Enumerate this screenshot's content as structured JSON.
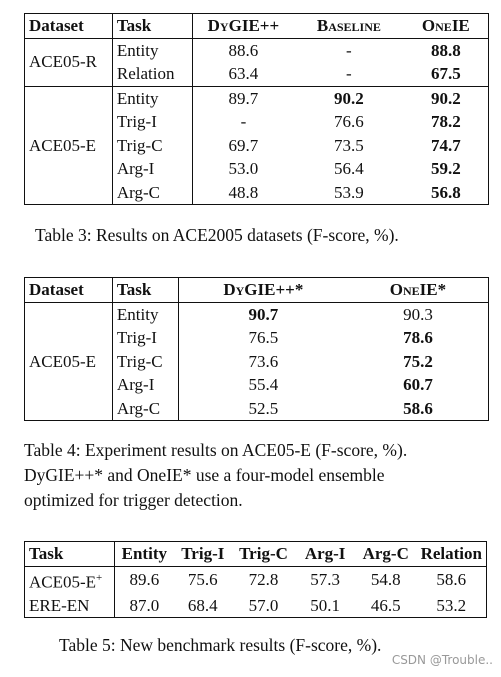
{
  "table3": {
    "headers": [
      "Dataset",
      "Task",
      "DyGIE++",
      "Baseline",
      "OneIE"
    ],
    "groups": [
      {
        "dataset": "ACE05-R",
        "rows": [
          {
            "task": "Entity",
            "c1": "88.6",
            "c2": "-",
            "c3": "88.8"
          },
          {
            "task": "Relation",
            "c1": "63.4",
            "c2": "-",
            "c3": "67.5"
          }
        ]
      },
      {
        "dataset": "ACE05-E",
        "rows": [
          {
            "task": "Entity",
            "c1": "89.7",
            "c2": "90.2",
            "c3": "90.2"
          },
          {
            "task": "Trig-I",
            "c1": "-",
            "c2": "76.6",
            "c3": "78.2"
          },
          {
            "task": "Trig-C",
            "c1": "69.7",
            "c2": "73.5",
            "c3": "74.7"
          },
          {
            "task": "Arg-I",
            "c1": "53.0",
            "c2": "56.4",
            "c3": "59.2"
          },
          {
            "task": "Arg-C",
            "c1": "48.8",
            "c2": "53.9",
            "c3": "56.8"
          }
        ]
      }
    ],
    "caption": "Table 3: Results on ACE2005 datasets (F-score, %)."
  },
  "table4": {
    "headers": [
      "Dataset",
      "Task",
      "DyGIE++*",
      "OneIE*"
    ],
    "dataset": "ACE05-E",
    "rows": [
      {
        "task": "Entity",
        "c1": "90.7",
        "c2": "90.3"
      },
      {
        "task": "Trig-I",
        "c1": "76.5",
        "c2": "78.6"
      },
      {
        "task": "Trig-C",
        "c1": "73.6",
        "c2": "75.2"
      },
      {
        "task": "Arg-I",
        "c1": "55.4",
        "c2": "60.7"
      },
      {
        "task": "Arg-C",
        "c1": "52.5",
        "c2": "58.6"
      }
    ],
    "caption": {
      "line1": "Table 4: Experiment results on ACE05-E (F-score, %).",
      "line2": "DyGIE++* and OneIE* use a four-model ensemble",
      "line3": "optimized for trigger detection."
    }
  },
  "table5": {
    "headers": [
      "Task",
      "Entity",
      "Trig-I",
      "Trig-C",
      "Arg-I",
      "Arg-C",
      "Relation"
    ],
    "rows": [
      {
        "task": "ACE05-E",
        "sup": "+",
        "vals": [
          "89.6",
          "75.6",
          "72.8",
          "57.3",
          "54.8",
          "58.6"
        ]
      },
      {
        "task": "ERE-EN",
        "sup": "",
        "vals": [
          "87.0",
          "68.4",
          "57.0",
          "50.1",
          "46.5",
          "53.2"
        ]
      }
    ],
    "caption": "Table 5: New benchmark results (F-score, %)."
  },
  "watermark": "CSDN @Trouble.."
}
